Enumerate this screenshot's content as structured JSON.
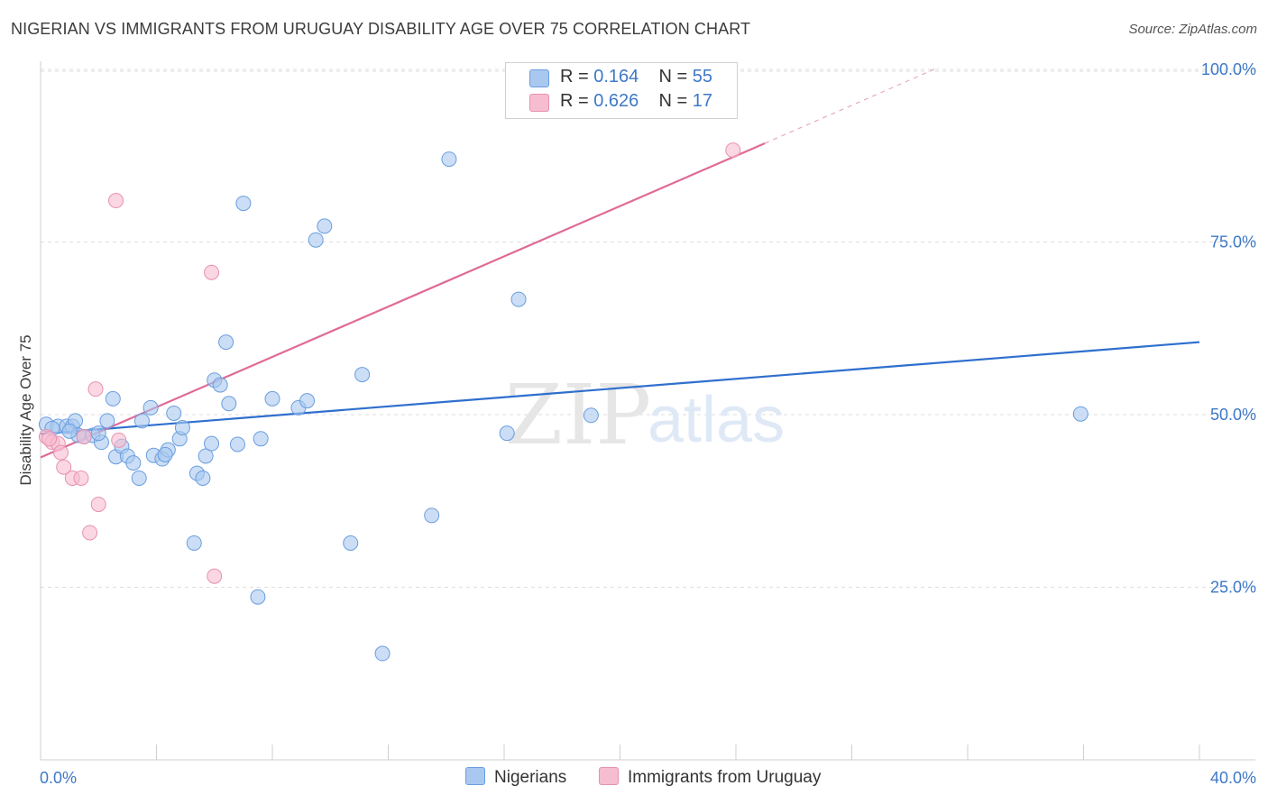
{
  "header": {
    "title": "NIGERIAN VS IMMIGRANTS FROM URUGUAY DISABILITY AGE OVER 75 CORRELATION CHART",
    "source": "Source: ZipAtlas.com"
  },
  "watermark": {
    "zip": "ZIP",
    "atlas": "atlas"
  },
  "legend": {
    "rows": [
      {
        "r_label": "R =",
        "r_value": "0.164",
        "n_label": "N =",
        "n_value": "55"
      },
      {
        "r_label": "R =",
        "r_value": "0.626",
        "n_label": "N =",
        "n_value": "17"
      }
    ]
  },
  "colors": {
    "blue_fill": "#a9c8ef",
    "blue_stroke": "#6a9ee0",
    "blue_line": "#2f6fce",
    "pink_fill": "#f6bdd0",
    "pink_stroke": "#e891b0",
    "pink_line": "#e06a96",
    "accent_text": "#3d78c8"
  },
  "chart_data": {
    "type": "scatter",
    "title": "NIGERIAN VS IMMIGRANTS FROM URUGUAY DISABILITY AGE OVER 75 CORRELATION CHART",
    "xlabel": "",
    "ylabel": "Disability Age Over 75",
    "xlim": [
      0,
      40
    ],
    "ylim": [
      0,
      105
    ],
    "x_tick_labels": [
      "0.0%",
      "40.0%"
    ],
    "y_ticks": [
      {
        "value": 25,
        "label": "25.0%"
      },
      {
        "value": 50,
        "label": "50.0%"
      },
      {
        "value": 75,
        "label": "75.0%"
      },
      {
        "value": 100,
        "label": "100.0%"
      }
    ],
    "legend_position": "bottom-center",
    "series": [
      {
        "name": "Nigerians",
        "r": 0.164,
        "n": 55,
        "trend": {
          "x0": 0,
          "y0": 47.2,
          "x1": 40,
          "y1": 60.5
        },
        "points": [
          [
            0.2,
            48.6
          ],
          [
            0.6,
            48.3
          ],
          [
            0.9,
            48.3
          ],
          [
            1.1,
            48.3
          ],
          [
            1.2,
            49.1
          ],
          [
            1.3,
            47.0
          ],
          [
            1.5,
            46.8
          ],
          [
            1.8,
            47.0
          ],
          [
            2.1,
            46.0
          ],
          [
            2.3,
            49.1
          ],
          [
            2.5,
            52.3
          ],
          [
            2.6,
            43.9
          ],
          [
            2.8,
            45.4
          ],
          [
            3.0,
            44.0
          ],
          [
            3.2,
            43.0
          ],
          [
            3.4,
            40.8
          ],
          [
            3.5,
            49.1
          ],
          [
            3.8,
            51.0
          ],
          [
            3.9,
            44.1
          ],
          [
            4.2,
            43.6
          ],
          [
            4.4,
            44.9
          ],
          [
            4.6,
            50.2
          ],
          [
            4.8,
            46.5
          ],
          [
            4.9,
            48.1
          ],
          [
            5.3,
            31.4
          ],
          [
            5.4,
            41.5
          ],
          [
            5.6,
            40.8
          ],
          [
            5.7,
            44.0
          ],
          [
            5.9,
            45.8
          ],
          [
            6.0,
            55.0
          ],
          [
            6.2,
            54.3
          ],
          [
            6.4,
            60.5
          ],
          [
            6.5,
            51.6
          ],
          [
            6.8,
            45.7
          ],
          [
            7.0,
            80.6
          ],
          [
            7.6,
            46.5
          ],
          [
            7.5,
            23.6
          ],
          [
            8.0,
            52.3
          ],
          [
            8.9,
            51.0
          ],
          [
            9.2,
            52.0
          ],
          [
            9.5,
            75.3
          ],
          [
            9.8,
            77.3
          ],
          [
            10.7,
            31.4
          ],
          [
            11.1,
            55.8
          ],
          [
            13.5,
            35.4
          ],
          [
            14.1,
            87.0
          ],
          [
            16.1,
            47.3
          ],
          [
            16.5,
            66.7
          ],
          [
            11.8,
            15.4
          ],
          [
            19.0,
            49.9
          ],
          [
            35.9,
            50.1
          ],
          [
            0.4,
            48.0
          ],
          [
            1.0,
            47.6
          ],
          [
            2.0,
            47.3
          ],
          [
            4.3,
            44.2
          ]
        ]
      },
      {
        "name": "Immigrants from Uruguay",
        "r": 0.626,
        "n": 17,
        "trend": {
          "x0": 0,
          "y0": 43.8,
          "x1": 25,
          "y1": 89.3
        },
        "trend_dashed_to": {
          "x": 31,
          "y": 100.3
        },
        "points": [
          [
            0.2,
            46.8
          ],
          [
            0.4,
            46.0
          ],
          [
            0.6,
            45.8
          ],
          [
            0.7,
            44.5
          ],
          [
            0.8,
            42.4
          ],
          [
            1.1,
            40.8
          ],
          [
            1.4,
            40.8
          ],
          [
            1.5,
            46.8
          ],
          [
            1.7,
            32.9
          ],
          [
            1.9,
            53.7
          ],
          [
            2.0,
            37.0
          ],
          [
            2.6,
            81.0
          ],
          [
            2.7,
            46.3
          ],
          [
            5.9,
            70.6
          ],
          [
            6.0,
            26.6
          ],
          [
            23.9,
            88.3
          ],
          [
            0.3,
            46.5
          ]
        ]
      }
    ]
  }
}
